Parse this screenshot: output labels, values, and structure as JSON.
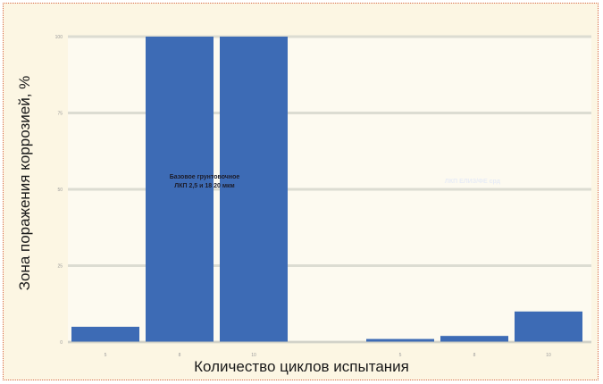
{
  "chart_data": {
    "type": "bar",
    "title": "",
    "xlabel": "Количество циклов испытания",
    "ylabel": "Зона поражения коррозией, %",
    "ylim": [
      0,
      100
    ],
    "yticks": [
      "0",
      "25",
      "50",
      "75",
      "100"
    ],
    "grid": true,
    "bar_color": "#3d6bb5",
    "categories": [
      "5",
      "8",
      "10",
      "5",
      "8",
      "10"
    ],
    "values": [
      5,
      100,
      100,
      1,
      2,
      10
    ],
    "annotations": [
      {
        "lines": [
          "Базовое грунтовочное",
          "ЛКП 2,5 и 18 20 мкм"
        ]
      },
      {
        "lines": [
          "ЛКП ЕЛИЗ/ФЕ срд"
        ]
      }
    ]
  }
}
